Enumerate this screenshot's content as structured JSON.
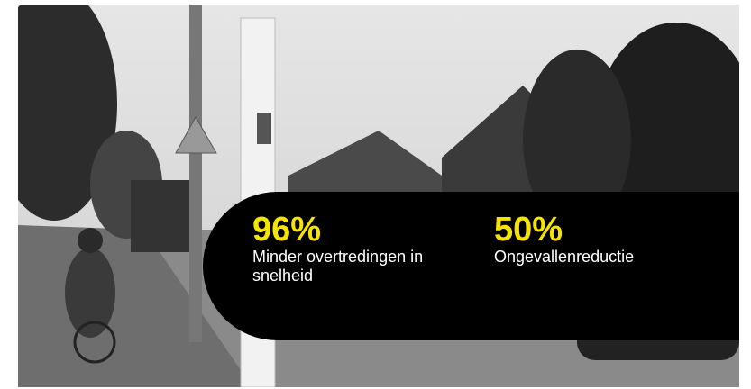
{
  "stats": [
    {
      "value": "96%",
      "label": "Minder overtredingen in snelheid"
    },
    {
      "value": "50%",
      "label": "Ongevallenreductie"
    }
  ]
}
